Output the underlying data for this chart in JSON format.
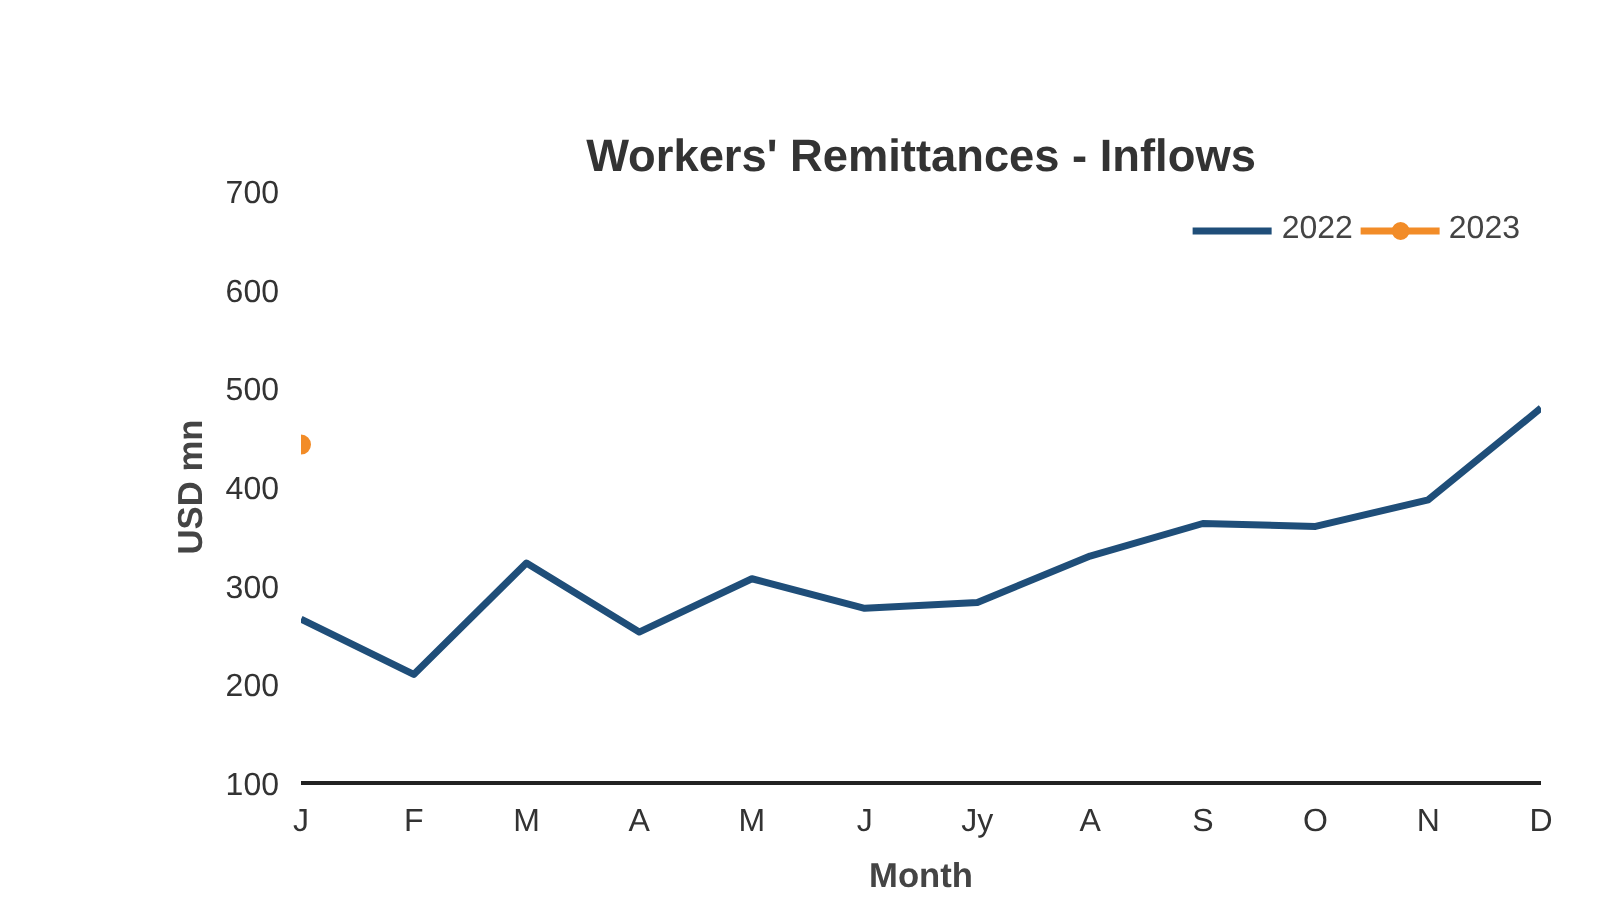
{
  "chart_data": {
    "type": "line",
    "title": "Workers' Remittances - Inflows",
    "xlabel": "Month",
    "ylabel": "USD mn",
    "categories": [
      "J",
      "F",
      "M",
      "A",
      "M",
      "J",
      "Jy",
      "A",
      "S",
      "O",
      "N",
      "D"
    ],
    "series": [
      {
        "name": "2022",
        "color": "#1f4e79",
        "marker": "none",
        "values": [
          266,
          210,
          323,
          253,
          307,
          277,
          283,
          330,
          363,
          360,
          387,
          480
        ]
      },
      {
        "name": "2023",
        "color": "#f28c28",
        "marker": "circle",
        "values": [
          443,
          null,
          null,
          null,
          null,
          null,
          null,
          null,
          null,
          null,
          null,
          null
        ]
      }
    ],
    "ylim": [
      100,
      700
    ],
    "yticks": [
      100,
      200,
      300,
      400,
      500,
      600,
      700
    ],
    "grid": false,
    "legend": "top right",
    "line_style": "solid"
  }
}
